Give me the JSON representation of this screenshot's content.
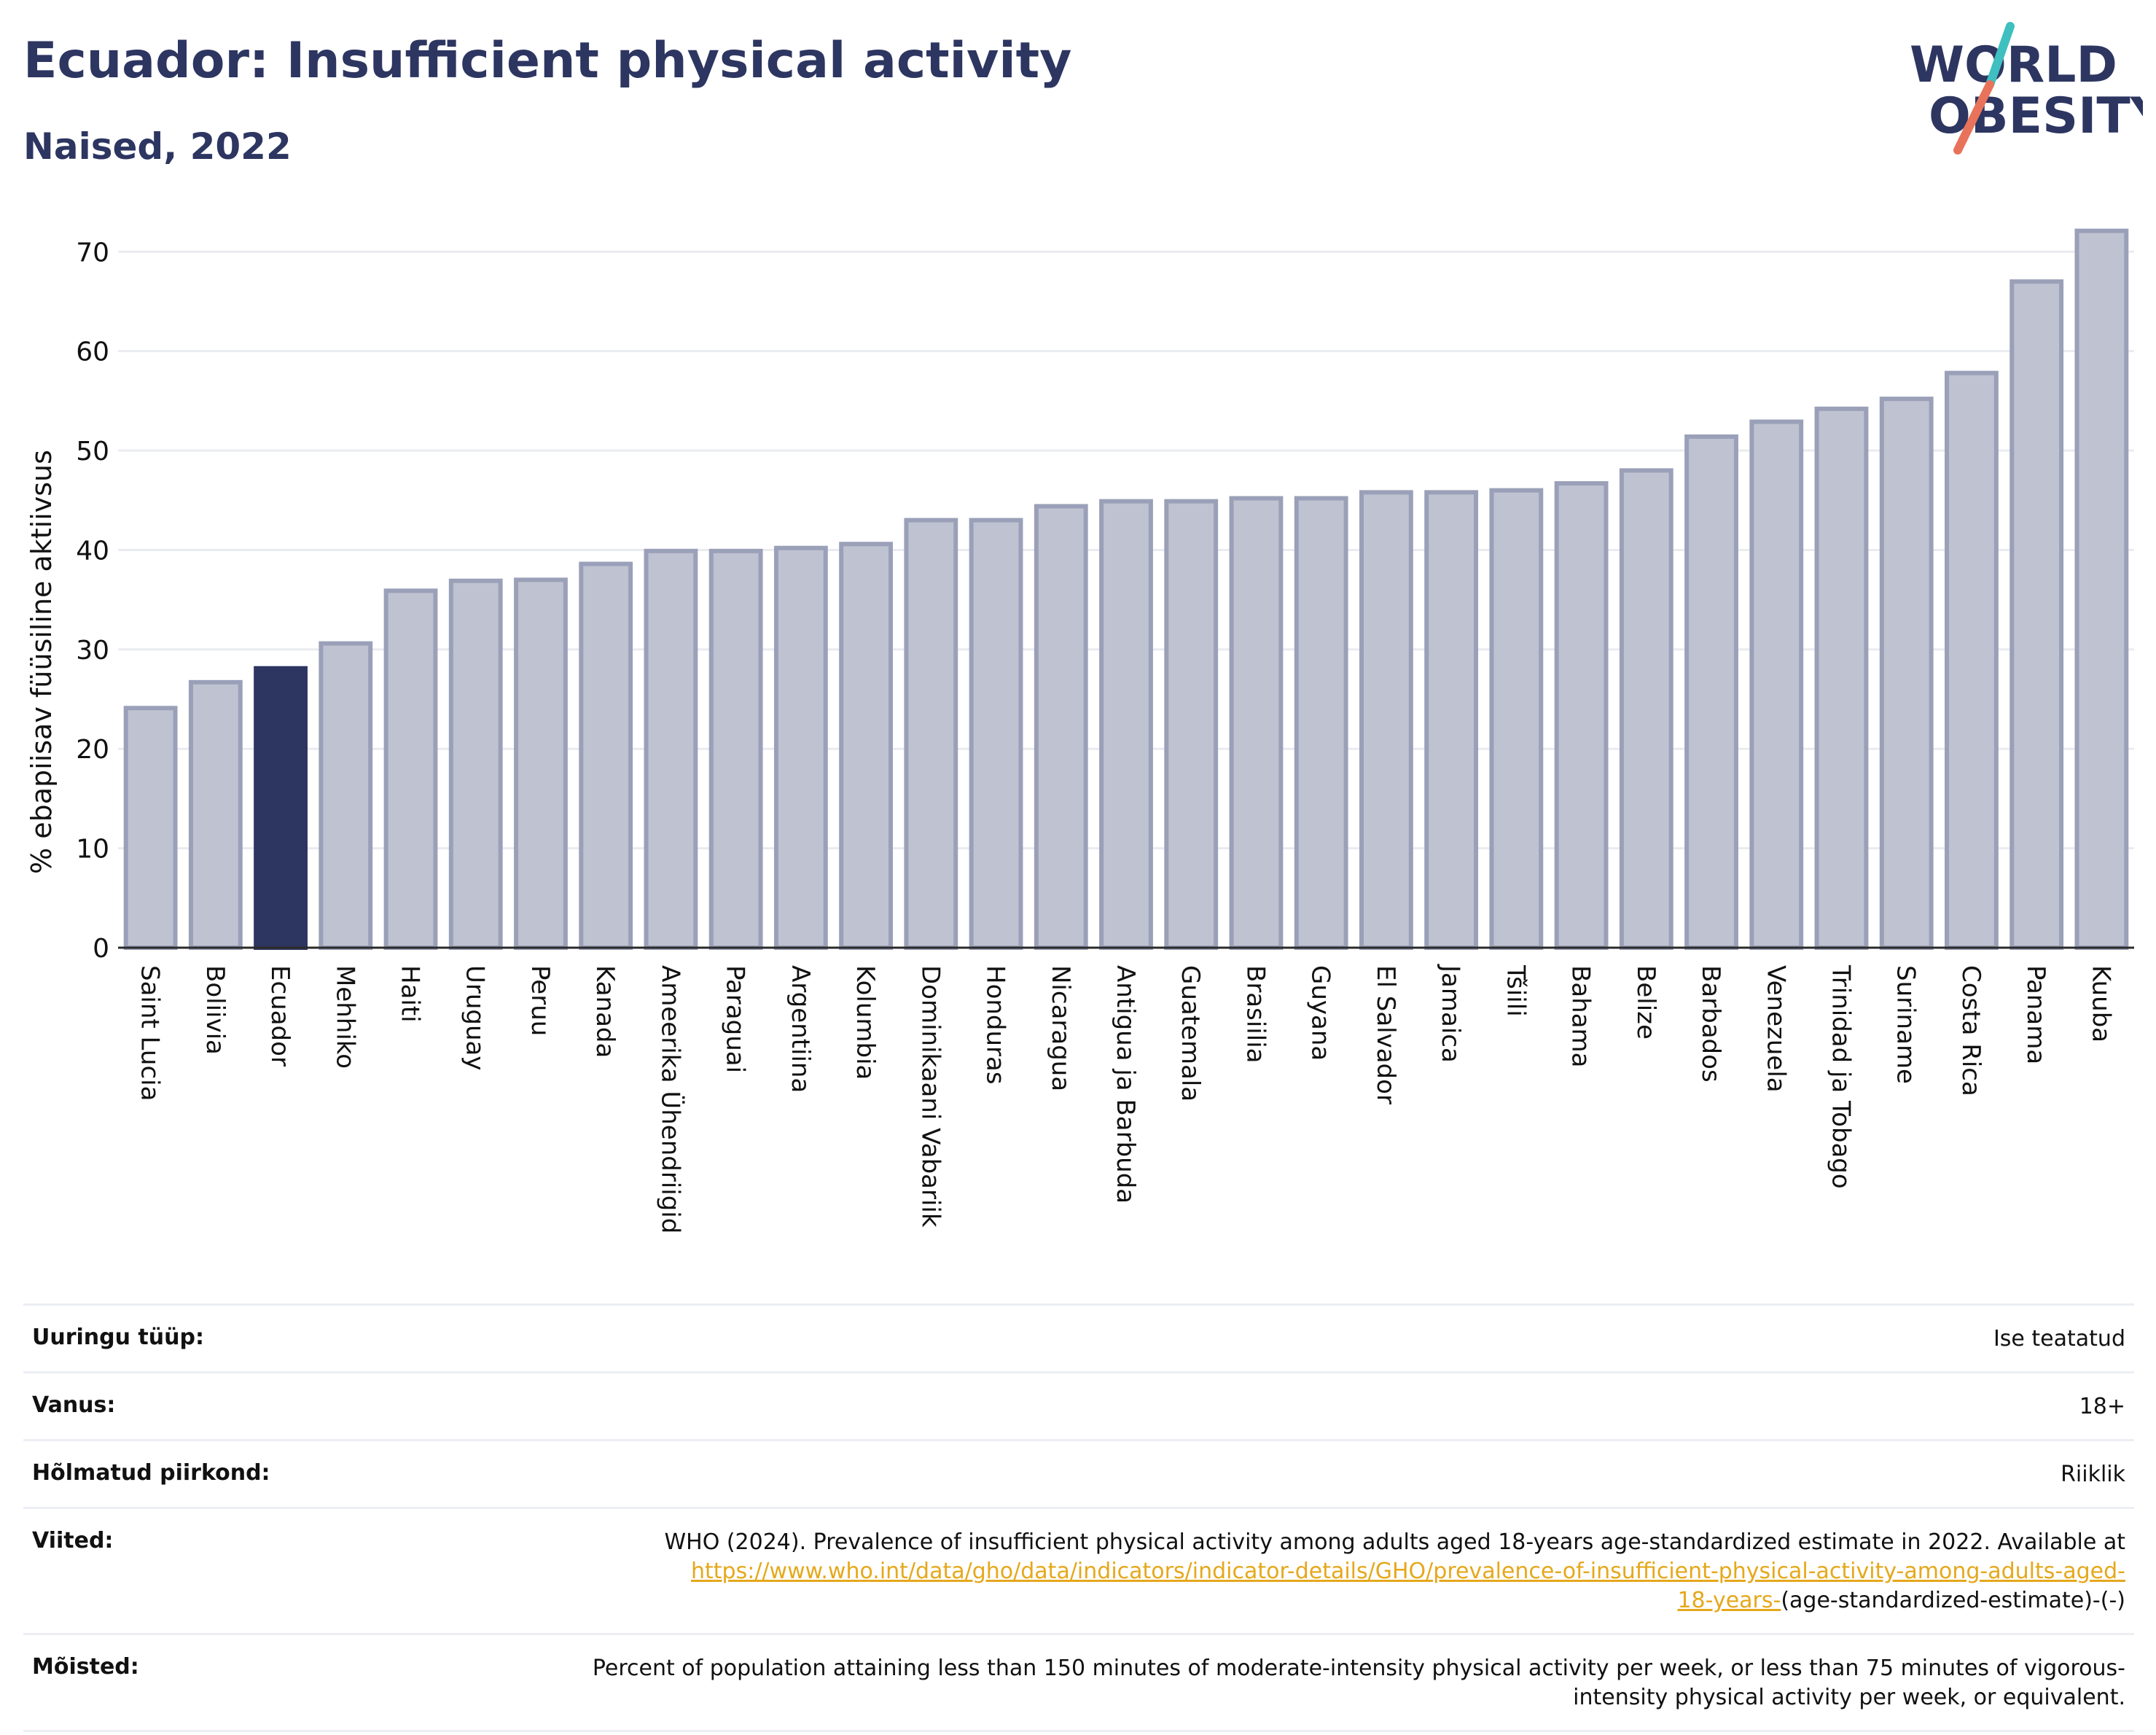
{
  "header": {
    "title": "Ecuador: Insufficient physical activity",
    "subtitle": "Naised, 2022"
  },
  "logo": {
    "line1": "WORLD",
    "line2": "OBESITY"
  },
  "colors": {
    "highlight": "#2d3561",
    "bar_fill": "#bfc2d0",
    "bar_stroke": "#9aa0b8",
    "text_dark": "#2d3561",
    "link": "#e5a81c",
    "logo_teal": "#3fbfbf",
    "logo_coral": "#e8735a"
  },
  "chart_data": {
    "type": "bar",
    "ylabel": "% ebapiisav füüsiline aktiivsus",
    "ylim": [
      0,
      72
    ],
    "yticks": [
      0,
      10,
      20,
      30,
      40,
      50,
      60,
      70
    ],
    "grid": true,
    "highlight_category": "Ecuador",
    "categories": [
      "Saint Lucia",
      "Boliivia",
      "Ecuador",
      "Mehhiko",
      "Haiti",
      "Uruguay",
      "Peruu",
      "Kanada",
      "Ameerika Ühendriigid",
      "Paraguai",
      "Argentiina",
      "Kolumbia",
      "Dominikaani Vabariik",
      "Honduras",
      "Nicaragua",
      "Antigua ja Barbuda",
      "Guatemala",
      "Brasiilia",
      "Guyana",
      "El Salvador",
      "Jamaica",
      "Tšiili",
      "Bahama",
      "Belize",
      "Barbados",
      "Venezuela",
      "Trinidad ja Tobago",
      "Suriname",
      "Costa Rica",
      "Panama",
      "Kuuba"
    ],
    "values": [
      24.1,
      26.7,
      28.1,
      30.6,
      35.9,
      36.9,
      37.0,
      38.6,
      39.9,
      39.9,
      40.2,
      40.6,
      43.0,
      43.0,
      44.4,
      44.9,
      44.9,
      45.2,
      45.2,
      45.8,
      45.8,
      46.0,
      46.7,
      48.0,
      51.4,
      52.9,
      54.2,
      55.2,
      57.8,
      67.0,
      72.1
    ]
  },
  "meta": {
    "rows": [
      {
        "label": "Uuringu tüüp:",
        "value": "Ise teatatud"
      },
      {
        "label": "Vanus:",
        "value": "18+"
      },
      {
        "label": "Hõlmatud piirkond:",
        "value": "Riiklik"
      }
    ],
    "references": {
      "label": "Viited:",
      "text": "WHO (2024). Prevalence of insufficient physical activity among adults aged 18-years age-standardized estimate in 2022. Available at",
      "link1": "https://www.who.int/data/gho/data/indicators/indicator-details/GHO/prevalence-of-insufficient-physical-activity-among-adults-aged-",
      "link2": "18-years-",
      "suffix": "(age-standardized-estimate)-(-)"
    },
    "definitions": {
      "label": "Mõisted:",
      "text": "Percent of population attaining less than 150 minutes of moderate-intensity physical activity per week, or less than 75 minutes of vigorous-intensity physical activity per week, or equivalent."
    }
  }
}
